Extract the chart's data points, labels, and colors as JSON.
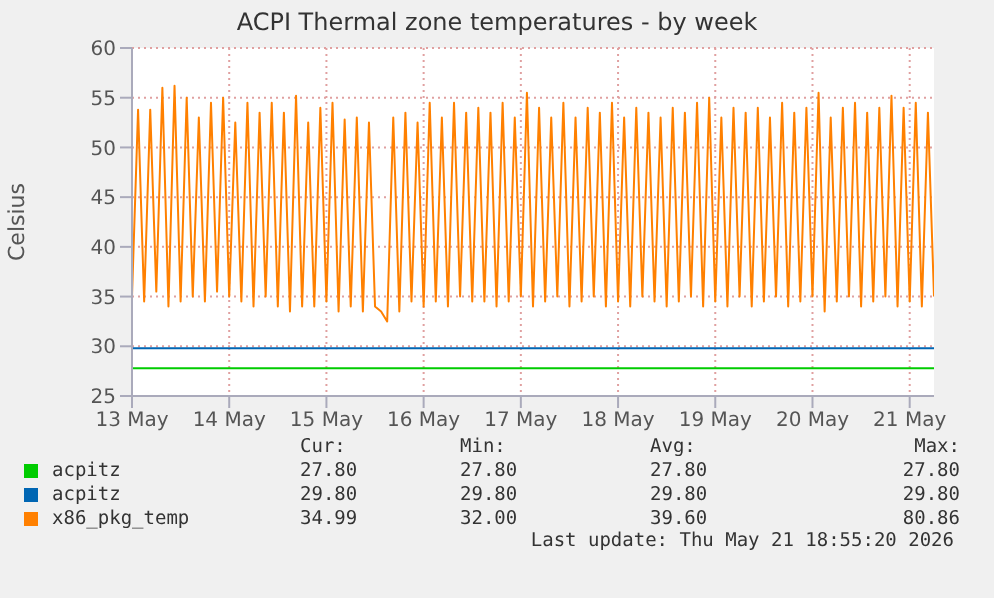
{
  "chart_data": {
    "type": "line",
    "title": "ACPI Thermal zone temperatures - by week",
    "ylabel": "Celsius",
    "xlim": [
      "2026-05-13T00:00",
      "2026-05-21T06:00"
    ],
    "xticks": [
      {
        "value": "2026-05-13T00:00",
        "label": "13 May"
      },
      {
        "value": "2026-05-14T00:00",
        "label": "14 May"
      },
      {
        "value": "2026-05-15T00:00",
        "label": "15 May"
      },
      {
        "value": "2026-05-16T00:00",
        "label": "16 May"
      },
      {
        "value": "2026-05-17T00:00",
        "label": "17 May"
      },
      {
        "value": "2026-05-18T00:00",
        "label": "18 May"
      },
      {
        "value": "2026-05-19T00:00",
        "label": "19 May"
      },
      {
        "value": "2026-05-20T00:00",
        "label": "20 May"
      },
      {
        "value": "2026-05-21T00:00",
        "label": "21 May"
      }
    ],
    "ylim": [
      25,
      60
    ],
    "yticks": [
      25,
      30,
      35,
      40,
      45,
      50,
      55,
      60
    ],
    "grid": true,
    "legend": "bottom",
    "marker": "none",
    "line_style": "solid",
    "x": [
      "2026-05-13T00:00",
      "2026-05-13T01:30",
      "2026-05-13T03:00",
      "2026-05-13T04:30",
      "2026-05-13T06:00",
      "2026-05-13T07:30",
      "2026-05-13T09:00",
      "2026-05-13T10:30",
      "2026-05-13T12:00",
      "2026-05-13T13:30",
      "2026-05-13T15:00",
      "2026-05-13T16:30",
      "2026-05-13T18:00",
      "2026-05-13T19:30",
      "2026-05-13T21:00",
      "2026-05-13T22:30",
      "2026-05-14T00:00",
      "2026-05-14T01:30",
      "2026-05-14T03:00",
      "2026-05-14T04:30",
      "2026-05-14T06:00",
      "2026-05-14T07:30",
      "2026-05-14T09:00",
      "2026-05-14T10:30",
      "2026-05-14T12:00",
      "2026-05-14T13:30",
      "2026-05-14T15:00",
      "2026-05-14T16:30",
      "2026-05-14T18:00",
      "2026-05-14T19:30",
      "2026-05-14T21:00",
      "2026-05-14T22:30",
      "2026-05-15T00:00",
      "2026-05-15T01:30",
      "2026-05-15T03:00",
      "2026-05-15T04:30",
      "2026-05-15T06:00",
      "2026-05-15T07:30",
      "2026-05-15T09:00",
      "2026-05-15T10:30",
      "2026-05-15T12:00",
      "2026-05-15T13:30",
      "2026-05-15T15:00",
      "2026-05-15T16:30",
      "2026-05-15T18:00",
      "2026-05-15T19:30",
      "2026-05-15T21:00",
      "2026-05-15T22:30",
      "2026-05-16T00:00",
      "2026-05-16T01:30",
      "2026-05-16T03:00",
      "2026-05-16T04:30",
      "2026-05-16T06:00",
      "2026-05-16T07:30",
      "2026-05-16T09:00",
      "2026-05-16T10:30",
      "2026-05-16T12:00",
      "2026-05-16T13:30",
      "2026-05-16T15:00",
      "2026-05-16T16:30",
      "2026-05-16T18:00",
      "2026-05-16T19:30",
      "2026-05-16T21:00",
      "2026-05-16T22:30",
      "2026-05-17T00:00",
      "2026-05-17T01:30",
      "2026-05-17T03:00",
      "2026-05-17T04:30",
      "2026-05-17T06:00",
      "2026-05-17T07:30",
      "2026-05-17T09:00",
      "2026-05-17T10:30",
      "2026-05-17T12:00",
      "2026-05-17T13:30",
      "2026-05-17T15:00",
      "2026-05-17T16:30",
      "2026-05-17T18:00",
      "2026-05-17T19:30",
      "2026-05-17T21:00",
      "2026-05-17T22:30",
      "2026-05-18T00:00",
      "2026-05-18T01:30",
      "2026-05-18T03:00",
      "2026-05-18T04:30",
      "2026-05-18T06:00",
      "2026-05-18T07:30",
      "2026-05-18T09:00",
      "2026-05-18T10:30",
      "2026-05-18T12:00",
      "2026-05-18T13:30",
      "2026-05-18T15:00",
      "2026-05-18T16:30",
      "2026-05-18T18:00",
      "2026-05-18T19:30",
      "2026-05-18T21:00",
      "2026-05-18T22:30",
      "2026-05-19T00:00",
      "2026-05-19T01:30",
      "2026-05-19T03:00",
      "2026-05-19T04:30",
      "2026-05-19T06:00",
      "2026-05-19T07:30",
      "2026-05-19T09:00",
      "2026-05-19T10:30",
      "2026-05-19T12:00",
      "2026-05-19T13:30",
      "2026-05-19T15:00",
      "2026-05-19T16:30",
      "2026-05-19T18:00",
      "2026-05-19T19:30",
      "2026-05-19T21:00",
      "2026-05-19T22:30",
      "2026-05-20T00:00",
      "2026-05-20T01:30",
      "2026-05-20T03:00",
      "2026-05-20T04:30",
      "2026-05-20T06:00",
      "2026-05-20T07:30",
      "2026-05-20T09:00",
      "2026-05-20T10:30",
      "2026-05-20T12:00",
      "2026-05-20T13:30",
      "2026-05-20T15:00",
      "2026-05-20T16:30",
      "2026-05-20T18:00",
      "2026-05-20T19:30",
      "2026-05-20T21:00",
      "2026-05-20T22:30",
      "2026-05-21T00:00",
      "2026-05-21T01:30",
      "2026-05-21T03:00",
      "2026-05-21T04:30",
      "2026-05-21T06:00"
    ],
    "series": [
      {
        "name": "acpitz",
        "color": "#00cc00",
        "x": [
          "2026-05-13T00:00",
          "2026-05-21T06:00"
        ],
        "values": [
          27.8,
          27.8
        ]
      },
      {
        "name": "acpitz",
        "color": "#0066b3",
        "x": [
          "2026-05-13T00:00",
          "2026-05-21T06:00"
        ],
        "values": [
          29.8,
          29.8
        ]
      },
      {
        "name": "x86_pkg_temp",
        "color": "#ff8000",
        "values": [
          35,
          53.8,
          34.5,
          53.8,
          35.5,
          56,
          34,
          56.2,
          34.5,
          55,
          35,
          53,
          34.5,
          54.5,
          35.5,
          55,
          35,
          52.5,
          34.5,
          54.5,
          34,
          53.5,
          35,
          54.5,
          34,
          53.5,
          33.5,
          55.2,
          34,
          52.5,
          34,
          54,
          34.5,
          54.5,
          33.5,
          52.8,
          34,
          53,
          33.5,
          52.5,
          34,
          33.5,
          32.5,
          53,
          33.5,
          53.5,
          34.5,
          52.5,
          34,
          54.5,
          34.5,
          53,
          34,
          54.5,
          35,
          53.5,
          34.5,
          54,
          34.5,
          53.5,
          34,
          54.5,
          34.5,
          53,
          35,
          55.5,
          34,
          54,
          34.5,
          53,
          35,
          54.5,
          34,
          53,
          34.5,
          54,
          35,
          53.5,
          34,
          54.5,
          34.5,
          53,
          34,
          54,
          35,
          53.5,
          34.5,
          53,
          34,
          54,
          34.5,
          53.5,
          35,
          54.5,
          34,
          55,
          34.5,
          53,
          34,
          54,
          35,
          53.5,
          34,
          54,
          34.5,
          53,
          35,
          54.5,
          34,
          53.5,
          34.5,
          54,
          35,
          55.5,
          33.5,
          53,
          34.5,
          54,
          35,
          54.5,
          34,
          53.5,
          34.5,
          54,
          35,
          55.2,
          34,
          54,
          34.5,
          54.5,
          34,
          53.5,
          35
        ]
      }
    ],
    "annotations": [
      "Cur:",
      "Min:",
      "Avg:",
      "Max:",
      "27.80",
      "27.80",
      "27.80",
      "27.80",
      "29.80",
      "29.80",
      "29.80",
      "29.80",
      "34.99",
      "32.00",
      "39.60",
      "80.86",
      "Last update: Thu May 21 18:55:20 2026"
    ]
  }
}
